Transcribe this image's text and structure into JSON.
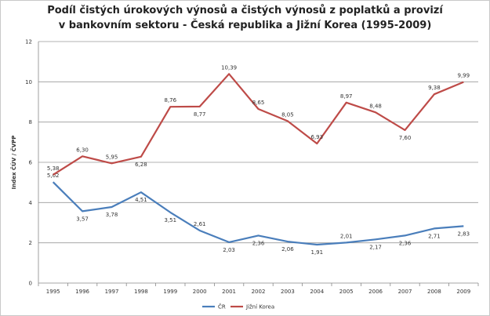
{
  "chart_data": {
    "type": "line",
    "title_lines": [
      "Podíl čistých úrokových výnosů a čistých výnosů z poplatků a provizí",
      "v bankovním sektoru - Česká republika a Jižní Korea (1995-2009)"
    ],
    "xlabel": "",
    "ylabel": "Index ČÚV / ČVPP",
    "ylim": [
      0,
      12
    ],
    "yticks": [
      "0",
      "2",
      "4",
      "6",
      "8",
      "10",
      "12"
    ],
    "grid": true,
    "legend_position": "bottom",
    "x": [
      "1995",
      "1996",
      "1997",
      "1998",
      "1999",
      "2000",
      "2001",
      "2002",
      "2003",
      "2004",
      "2005",
      "2006",
      "2007",
      "2008",
      "2009"
    ],
    "series": [
      {
        "name": "ČR",
        "color": "#4a7ebb",
        "values": [
          5.02,
          3.57,
          3.78,
          4.51,
          3.51,
          2.61,
          2.03,
          2.36,
          2.06,
          1.91,
          2.01,
          2.17,
          2.36,
          2.71,
          2.83
        ],
        "labels": [
          "5,02",
          "3,57",
          "3,78",
          "4,51",
          "3,51",
          "2,61",
          "2,03",
          "2,36",
          "2,06",
          "1,91",
          "2,01",
          "2,17",
          "2,36",
          "2,71",
          "2,83"
        ],
        "label_side": [
          "above",
          "below",
          "below",
          "below",
          "below",
          "above",
          "below",
          "below",
          "below",
          "below",
          "above",
          "below",
          "below",
          "below",
          "below"
        ]
      },
      {
        "name": "Jižní Korea",
        "color": "#be4b48",
        "values": [
          5.38,
          6.3,
          5.95,
          6.28,
          8.76,
          8.77,
          10.39,
          8.65,
          8.05,
          6.93,
          8.97,
          8.48,
          7.6,
          9.38,
          9.99
        ],
        "labels": [
          "5,38",
          "6,30",
          "5,95",
          "6,28",
          "8,76",
          "8,77",
          "10,39",
          "8,65",
          "8,05",
          "6,93",
          "8,97",
          "8,48",
          "7,60",
          "9,38",
          "9,99"
        ],
        "label_side": [
          "above",
          "above",
          "above",
          "below",
          "above",
          "below",
          "above",
          "above",
          "above",
          "above",
          "above",
          "above",
          "below",
          "above",
          "above"
        ]
      }
    ]
  }
}
